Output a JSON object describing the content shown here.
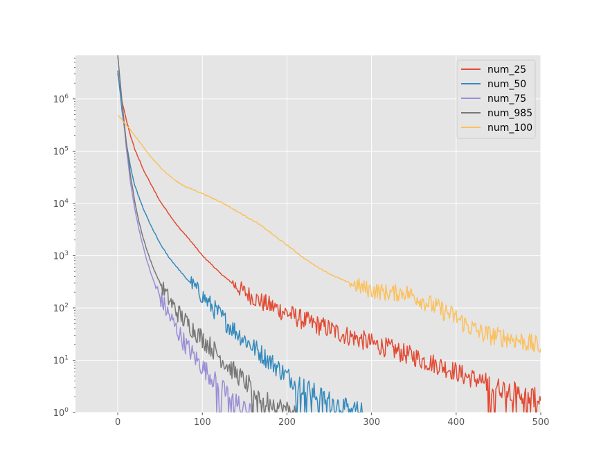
{
  "chart_data": {
    "type": "line",
    "title": "",
    "xlabel": "",
    "ylabel": "",
    "xlim": [
      -50,
      500
    ],
    "ylim": [
      1,
      6800000
    ],
    "yscale": "log",
    "grid": true,
    "background": "#E5E5E5",
    "legend_position": "top-right",
    "x_ticks": [
      0,
      100,
      200,
      300,
      400,
      500
    ],
    "x_tick_labels": [
      "0",
      "100",
      "200",
      "300",
      "400",
      "500"
    ],
    "y_ticks": [
      1,
      10,
      100,
      1000,
      10000,
      100000,
      1000000
    ],
    "y_tick_labels": [
      {
        "base": "10",
        "exp": "0"
      },
      {
        "base": "10",
        "exp": "1"
      },
      {
        "base": "10",
        "exp": "2"
      },
      {
        "base": "10",
        "exp": "3"
      },
      {
        "base": "10",
        "exp": "4"
      },
      {
        "base": "10",
        "exp": "5"
      },
      {
        "base": "10",
        "exp": "6"
      }
    ],
    "series": [
      {
        "name": "num_25",
        "color": "#E24A33",
        "points": [
          [
            0,
            3000000
          ],
          [
            5,
            900000
          ],
          [
            10,
            400000
          ],
          [
            15,
            200000
          ],
          [
            20,
            110000
          ],
          [
            30,
            45000
          ],
          [
            40,
            22000
          ],
          [
            50,
            11000
          ],
          [
            60,
            6500
          ],
          [
            70,
            3800
          ],
          [
            80,
            2500
          ],
          [
            90,
            1600
          ],
          [
            100,
            1000
          ],
          [
            110,
            700
          ],
          [
            120,
            480
          ],
          [
            130,
            350
          ],
          [
            140,
            260
          ],
          [
            150,
            200
          ],
          [
            160,
            160
          ],
          [
            170,
            130
          ],
          [
            180,
            110
          ],
          [
            190,
            95
          ],
          [
            200,
            80
          ],
          [
            210,
            68
          ],
          [
            220,
            58
          ],
          [
            230,
            50
          ],
          [
            240,
            45
          ],
          [
            250,
            40
          ],
          [
            260,
            34
          ],
          [
            270,
            30
          ],
          [
            280,
            27
          ],
          [
            290,
            24
          ],
          [
            300,
            21
          ],
          [
            310,
            19
          ],
          [
            320,
            17
          ],
          [
            330,
            15
          ],
          [
            340,
            13
          ],
          [
            350,
            12
          ],
          [
            360,
            10
          ],
          [
            370,
            9
          ],
          [
            380,
            8
          ],
          [
            390,
            7
          ],
          [
            400,
            6
          ],
          [
            410,
            5
          ],
          [
            420,
            4.5
          ],
          [
            430,
            4
          ],
          [
            440,
            3.5
          ],
          [
            450,
            3
          ],
          [
            460,
            2.8
          ],
          [
            470,
            2.5
          ],
          [
            480,
            2.2
          ],
          [
            490,
            2
          ],
          [
            500,
            1.8
          ]
        ]
      },
      {
        "name": "num_50",
        "color": "#348ABD",
        "points": [
          [
            0,
            3500000
          ],
          [
            5,
            600000
          ],
          [
            10,
            150000
          ],
          [
            15,
            50000
          ],
          [
            20,
            22000
          ],
          [
            30,
            8000
          ],
          [
            40,
            3500
          ],
          [
            50,
            1700
          ],
          [
            60,
            950
          ],
          [
            70,
            600
          ],
          [
            80,
            380
          ],
          [
            90,
            260
          ],
          [
            100,
            170
          ],
          [
            110,
            110
          ],
          [
            120,
            75
          ],
          [
            130,
            50
          ],
          [
            140,
            35
          ],
          [
            150,
            25
          ],
          [
            160,
            18
          ],
          [
            170,
            13
          ],
          [
            180,
            9.5
          ],
          [
            190,
            7
          ],
          [
            200,
            5
          ],
          [
            210,
            4
          ],
          [
            220,
            3
          ],
          [
            230,
            2.5
          ],
          [
            240,
            2
          ],
          [
            250,
            1.7
          ],
          [
            260,
            1.4
          ],
          [
            270,
            1.2
          ],
          [
            280,
            1.1
          ],
          [
            290,
            1
          ]
        ]
      },
      {
        "name": "num_75",
        "color": "#988ED5",
        "points": [
          [
            0,
            6800000
          ],
          [
            5,
            800000
          ],
          [
            10,
            120000
          ],
          [
            15,
            25000
          ],
          [
            20,
            8000
          ],
          [
            25,
            3200
          ],
          [
            30,
            1500
          ],
          [
            35,
            750
          ],
          [
            40,
            420
          ],
          [
            45,
            250
          ],
          [
            50,
            160
          ],
          [
            60,
            75
          ],
          [
            70,
            38
          ],
          [
            80,
            20
          ],
          [
            90,
            12
          ],
          [
            100,
            7.5
          ],
          [
            110,
            5
          ],
          [
            120,
            3.2
          ],
          [
            130,
            2.2
          ],
          [
            140,
            1.5
          ],
          [
            150,
            1.1
          ],
          [
            160,
            1
          ]
        ]
      },
      {
        "name": "num_985",
        "color": "#777777",
        "points": [
          [
            0,
            6800000
          ],
          [
            5,
            900000
          ],
          [
            10,
            150000
          ],
          [
            15,
            35000
          ],
          [
            20,
            11000
          ],
          [
            25,
            4500
          ],
          [
            30,
            2200
          ],
          [
            35,
            1200
          ],
          [
            40,
            700
          ],
          [
            45,
            450
          ],
          [
            50,
            300
          ],
          [
            60,
            150
          ],
          [
            70,
            85
          ],
          [
            80,
            55
          ],
          [
            90,
            38
          ],
          [
            100,
            26
          ],
          [
            110,
            18
          ],
          [
            120,
            12
          ],
          [
            130,
            8
          ],
          [
            140,
            5.5
          ],
          [
            150,
            4
          ],
          [
            160,
            2.8
          ],
          [
            170,
            2
          ],
          [
            180,
            1.6
          ],
          [
            190,
            1.3
          ],
          [
            200,
            1.1
          ],
          [
            210,
            1
          ]
        ]
      },
      {
        "name": "num_100",
        "color": "#FBC15E",
        "points": [
          [
            0,
            480000
          ],
          [
            5,
            400000
          ],
          [
            10,
            320000
          ],
          [
            20,
            200000
          ],
          [
            30,
            120000
          ],
          [
            40,
            75000
          ],
          [
            50,
            50000
          ],
          [
            60,
            35000
          ],
          [
            70,
            26000
          ],
          [
            80,
            21000
          ],
          [
            90,
            18000
          ],
          [
            100,
            15500
          ],
          [
            110,
            13000
          ],
          [
            120,
            11000
          ],
          [
            130,
            9000
          ],
          [
            140,
            7200
          ],
          [
            150,
            5800
          ],
          [
            160,
            4700
          ],
          [
            170,
            3700
          ],
          [
            180,
            2800
          ],
          [
            190,
            2100
          ],
          [
            200,
            1600
          ],
          [
            210,
            1200
          ],
          [
            220,
            900
          ],
          [
            230,
            700
          ],
          [
            240,
            560
          ],
          [
            250,
            450
          ],
          [
            260,
            380
          ],
          [
            270,
            320
          ],
          [
            280,
            280
          ],
          [
            290,
            240
          ],
          [
            300,
            220
          ],
          [
            310,
            205
          ],
          [
            320,
            195
          ],
          [
            330,
            195
          ],
          [
            340,
            200
          ],
          [
            350,
            170
          ],
          [
            360,
            140
          ],
          [
            370,
            115
          ],
          [
            380,
            95
          ],
          [
            390,
            80
          ],
          [
            400,
            65
          ],
          [
            410,
            50
          ],
          [
            420,
            40
          ],
          [
            430,
            33
          ],
          [
            440,
            30
          ],
          [
            450,
            28
          ],
          [
            460,
            27
          ],
          [
            470,
            25
          ],
          [
            480,
            23
          ],
          [
            490,
            20
          ],
          [
            500,
            18
          ]
        ]
      }
    ]
  }
}
